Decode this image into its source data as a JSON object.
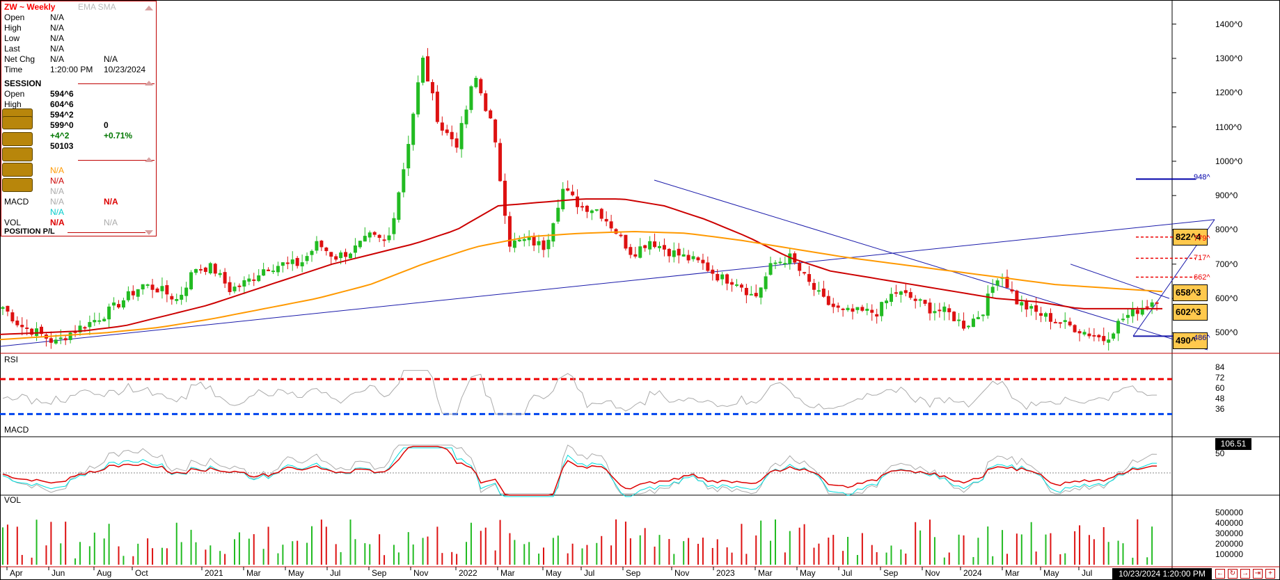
{
  "info": {
    "symbol": "ZW ~ Weekly",
    "indicators": "EMA SMA",
    "open_label": "Open",
    "open_val": "N/A",
    "high_label": "High",
    "high_val": "N/A",
    "low_label": "Low",
    "low_val": "N/A",
    "last_label": "Last",
    "last_val": "N/A",
    "netchg_label": "Net Chg",
    "netchg_val": "N/A",
    "netchg_val2": "N/A",
    "time_label": "Time",
    "time_val": "1:20:00 PM",
    "time_date": "10/23/2024",
    "session_label": "SESSION",
    "s_open_label": "Open",
    "s_open_val": "594^6",
    "s_high_label": "High",
    "s_high_val": "604^6",
    "s_low_val": "594^2",
    "s_last_val": "599^0",
    "s_last_val2": "0",
    "s_chg_val": "+4^2",
    "s_chg_pct": "+0.71%",
    "s_vol_val": "50103",
    "ema_val": "N/A",
    "sma_val": "N/A",
    "rsi_val": "N/A",
    "macd_label": "MACD",
    "macd_val1": "N/A",
    "macd_val2": "N/A",
    "macd_val3": "N/A",
    "vol_label": "VOL",
    "vol_val1": "N/A",
    "vol_val2": "N/A",
    "position_label": "POSITION P/L"
  },
  "colors": {
    "up": "#22bb22",
    "down": "#dd1111",
    "ema": "#cc0000",
    "sma": "#ff9900",
    "trend": "#1a1aaa",
    "rsi": "#aaaaaa",
    "macd_signal": "#00dddd"
  },
  "panels": {
    "rsi_label": "RSI",
    "macd_label": "MACD",
    "vol_label": "VOL"
  },
  "price_axis": [
    "1400^0",
    "1300^0",
    "1200^0",
    "1100^0",
    "1000^0",
    "900^0",
    "800^0",
    "700^0",
    "600^0",
    "500^0"
  ],
  "rsi_axis": [
    "84",
    "72",
    "60",
    "48",
    "36"
  ],
  "macd_axis": [
    "50"
  ],
  "macd_value": "106.51",
  "vol_axis": [
    "500000",
    "400000",
    "300000",
    "200000",
    "100000"
  ],
  "x_axis": [
    "Apr",
    "Jun",
    "Aug",
    "Oct",
    "2021",
    "Mar",
    "May",
    "Jul",
    "Sep",
    "Nov",
    "2022",
    "Mar",
    "May",
    "Jul",
    "Sep",
    "Nov",
    "2023",
    "Mar",
    "May",
    "Jul",
    "Sep",
    "Nov",
    "2024",
    "Mar",
    "May",
    "Jul"
  ],
  "time_box": "10/23/2024 1:20:00 PM",
  "levels": {
    "box1": "822^4",
    "box2": "658^3",
    "box3": "602^3",
    "box4": "490^",
    "fib_948": "948^",
    "fib_717": "717^",
    "fib_662": "662^",
    "fib_486": "486^",
    "fib_779": "779^"
  },
  "chart_data": {
    "type": "candlestick",
    "title": "ZW ~ Weekly",
    "ylim": [
      440,
      1450
    ],
    "ohlc_anchor_closes": [
      575,
      520,
      500,
      470,
      505,
      530,
      560,
      600,
      640,
      625,
      595,
      690,
      690,
      625,
      650,
      690,
      700,
      700,
      760,
      720,
      740,
      780,
      760,
      1000,
      1300,
      1100,
      1050,
      1250,
      1100,
      760,
      770,
      750,
      920,
      870,
      860,
      800,
      730,
      770,
      740,
      720,
      700,
      660,
      650,
      600,
      700,
      720,
      650,
      590,
      560,
      560,
      560,
      620,
      600,
      570,
      560,
      520,
      560,
      680,
      590,
      560,
      540,
      520,
      500,
      480,
      540,
      570,
      600
    ],
    "ema_anchor_values": [
      495,
      500,
      505,
      520,
      550,
      580,
      620,
      660,
      700,
      730,
      760,
      800,
      870,
      880,
      890,
      890,
      870,
      830,
      780,
      720,
      680,
      660,
      640,
      620,
      600,
      590,
      570,
      570,
      570
    ],
    "sma_anchor_values": [
      480,
      490,
      500,
      515,
      540,
      570,
      600,
      640,
      700,
      750,
      780,
      790,
      795,
      790,
      770,
      745,
      720,
      700,
      680,
      660,
      640,
      630,
      620
    ],
    "rsi_overbought": 70,
    "rsi_oversold": 30
  }
}
